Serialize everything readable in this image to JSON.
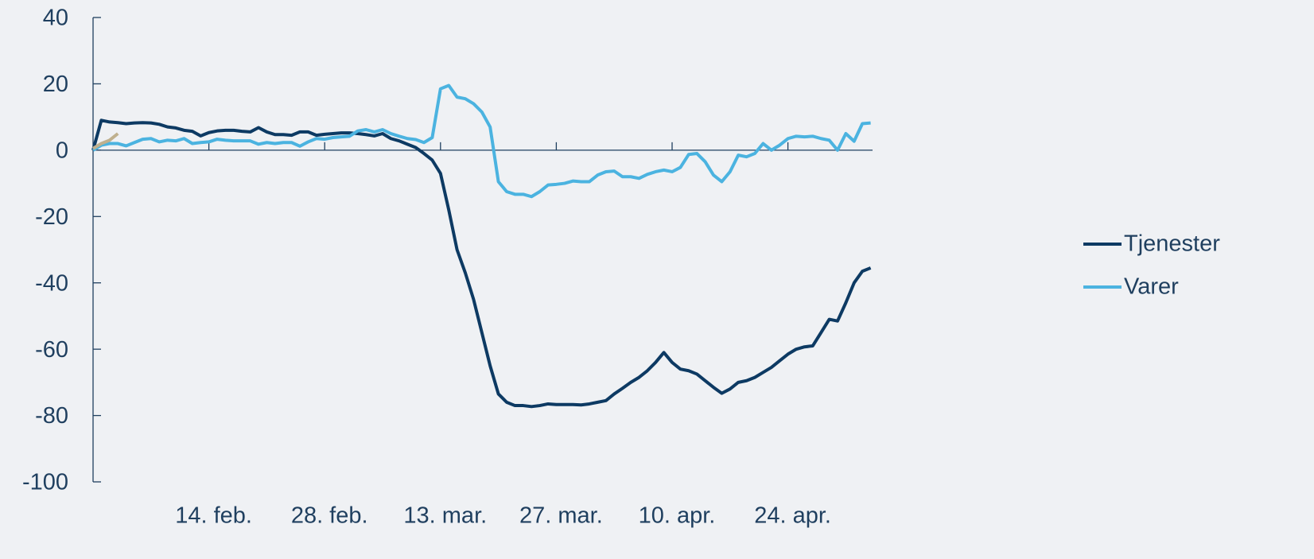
{
  "chart_data": {
    "type": "line",
    "categories": [
      null,
      null,
      null,
      null,
      null,
      null,
      null,
      null,
      null,
      null,
      null,
      null,
      null,
      null,
      "14. feb.",
      null,
      null,
      null,
      null,
      null,
      null,
      null,
      null,
      null,
      null,
      null,
      null,
      null,
      "28. feb.",
      null,
      null,
      null,
      null,
      null,
      null,
      null,
      null,
      null,
      null,
      null,
      null,
      null,
      "13. mar.",
      null,
      null,
      null,
      null,
      null,
      null,
      null,
      null,
      null,
      null,
      null,
      null,
      null,
      "27. mar.",
      null,
      null,
      null,
      null,
      null,
      null,
      null,
      null,
      null,
      null,
      null,
      null,
      null,
      "10. apr.",
      null,
      null,
      null,
      null,
      null,
      null,
      null,
      null,
      null,
      null,
      null,
      null,
      null,
      "24. apr.",
      null,
      null,
      null,
      null,
      null,
      null,
      null,
      null,
      null,
      null
    ],
    "series": [
      {
        "name": "Tjenester",
        "color": "#0d3a63",
        "values": [
          0,
          9,
          8.5,
          8.3,
          8,
          8.2,
          8.3,
          8.2,
          7.8,
          7,
          6.7,
          6,
          5.7,
          4.3,
          5.3,
          5.8,
          6,
          6,
          5.7,
          5.5,
          6.8,
          5.5,
          4.7,
          4.7,
          4.5,
          5.5,
          5.5,
          4.5,
          4.8,
          5,
          5.2,
          5.2,
          5,
          4.7,
          4.3,
          5,
          3.5,
          2.8,
          1.8,
          0.8,
          -1,
          -3,
          -7,
          -18,
          -30,
          -37,
          -45,
          -55,
          -65,
          -73.5,
          -76,
          -77,
          -77,
          -77.3,
          -77,
          -76.5,
          -76.7,
          -76.7,
          -76.7,
          -76.8,
          -76.5,
          -76,
          -75.5,
          -73.5,
          -71.8,
          -70,
          -68.5,
          -66.5,
          -64,
          -61,
          -64,
          -66,
          -66.5,
          -67.5,
          -69.5,
          -71.5,
          -73.3,
          -72,
          -70,
          -69.5,
          -68.5,
          -67,
          -65.5,
          -63.5,
          -61.5,
          -60,
          -59.3,
          -59,
          -55,
          -51,
          -51.5,
          -46,
          -40,
          -36.5,
          -35.5
        ]
      },
      {
        "name": "Varer",
        "color": "#4bb3e0",
        "values": [
          0,
          1.5,
          2,
          2,
          1.3,
          2.3,
          3.3,
          3.5,
          2.5,
          3,
          2.8,
          3.5,
          2,
          2.3,
          2.5,
          3.3,
          3,
          2.8,
          2.8,
          2.8,
          1.8,
          2.3,
          2,
          2.3,
          2.3,
          1.2,
          2.5,
          3.5,
          3.3,
          3.8,
          4,
          4.2,
          5.8,
          6.2,
          5.5,
          6.2,
          5,
          4.2,
          3.5,
          3.2,
          2.3,
          3.8,
          18.5,
          19.5,
          16,
          15.5,
          14,
          11.5,
          7,
          -9.5,
          -12.5,
          -13.3,
          -13.3,
          -14,
          -12.5,
          -10.5,
          -10.3,
          -10,
          -9.3,
          -9.5,
          -9.5,
          -7.5,
          -6.5,
          -6.3,
          -8,
          -8,
          -8.5,
          -7.3,
          -6.5,
          -6,
          -6.5,
          -5.2,
          -1.3,
          -1,
          -3.5,
          -7.5,
          -9.5,
          -6.5,
          -1.5,
          -2,
          -1,
          2,
          0,
          1.5,
          3.5,
          4.2,
          4,
          4.2,
          3.5,
          3,
          0,
          5,
          2.7,
          8,
          8.2
        ]
      },
      {
        "color": "#bfb08e",
        "values": [
          0.5,
          2,
          3,
          5,
          null,
          null,
          null,
          null,
          null,
          null,
          null,
          null,
          null,
          null,
          null,
          null,
          null,
          null,
          null,
          null,
          null,
          null,
          null,
          null,
          null,
          null,
          null,
          null,
          null,
          null,
          null,
          null,
          null,
          null,
          null,
          null,
          null,
          null,
          null,
          null,
          null,
          null,
          null,
          null,
          null,
          null,
          null,
          null,
          null,
          null,
          null,
          null,
          null,
          null,
          null,
          null,
          null,
          null,
          null,
          null,
          null,
          null,
          null,
          null,
          null,
          null,
          null,
          null,
          null,
          null,
          null,
          null,
          null,
          null,
          null,
          null,
          null,
          null,
          null,
          null,
          null,
          null,
          null,
          null,
          null,
          null,
          null,
          null,
          null,
          null,
          null,
          null,
          null,
          null,
          null
        ]
      }
    ],
    "ylim": [
      -100,
      40
    ],
    "yticks": [
      -100,
      -80,
      -60,
      -40,
      -20,
      0,
      20,
      40
    ],
    "legend": "right"
  }
}
